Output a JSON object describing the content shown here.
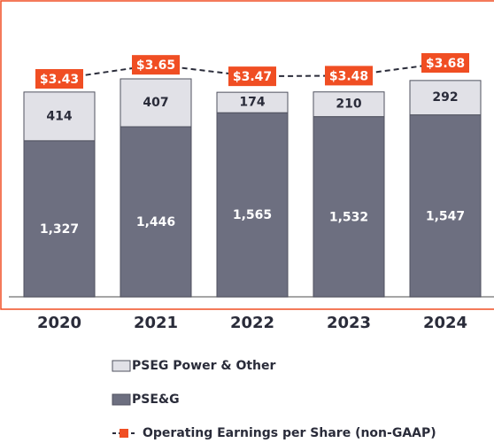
{
  "chart_data": {
    "type": "bar",
    "stacked": true,
    "categories": [
      "2020",
      "2021",
      "2022",
      "2023",
      "2024"
    ],
    "series": [
      {
        "name": "PSE&G",
        "color": "#6d6f80",
        "values": [
          1327,
          1446,
          1565,
          1532,
          1547
        ],
        "value_labels": [
          "1,327",
          "1,446",
          "1,565",
          "1,532",
          "1,547"
        ]
      },
      {
        "name": "PSEG Power & Other",
        "color": "#e1e1e7",
        "values": [
          414,
          407,
          174,
          210,
          292
        ]
      },
      {
        "name": "Operating Earnings per Share (non-GAAP)",
        "type": "line",
        "color": "#f04e23",
        "values": [
          3.43,
          3.65,
          3.47,
          3.48,
          3.68
        ],
        "value_labels": [
          "$3.43",
          "$3.65",
          "$3.47",
          "$3.48",
          "$3.68"
        ]
      }
    ]
  }
}
